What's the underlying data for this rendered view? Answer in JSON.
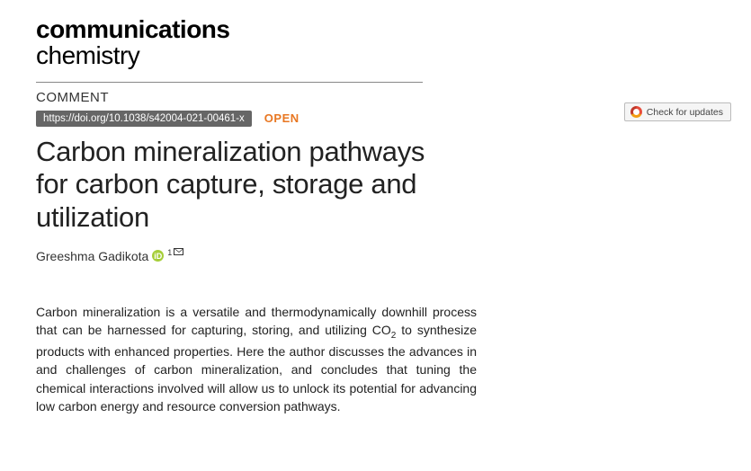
{
  "journal": {
    "line1": "communications",
    "line2": "chemistry",
    "line1_weight": 800,
    "line2_weight": 300,
    "fontsize": 28,
    "color": "#000000"
  },
  "article_type": "COMMENT",
  "doi": "https://doi.org/10.1038/s42004-021-00461-x",
  "doi_badge": {
    "bg": "#666666",
    "fg": "#ffffff"
  },
  "open_access": {
    "label": "OPEN",
    "color": "#e87722"
  },
  "title": "Carbon mineralization pathways for carbon capture, storage and utilization",
  "title_style": {
    "fontsize": 31,
    "weight": 300,
    "color": "#222222"
  },
  "author": {
    "name": "Greeshma Gadikota",
    "orcid_present": true,
    "affiliation_marker": "1",
    "corresponding": true
  },
  "orcid_color": "#a6ce39",
  "abstract_parts": {
    "p1": "Carbon mineralization is a versatile and thermodynamically downhill process that can be harnessed for capturing, storing, and utilizing CO",
    "sub": "2",
    "p2": " to synthesize products with enhanced properties. Here the author discusses the advances in and challenges of carbon mineralization, and concludes that tuning the chemical interactions involved will allow us to unlock its potential for advancing low carbon energy and resource conversion pathways."
  },
  "abstract_style": {
    "fontsize": 14,
    "color": "#222222",
    "max_width": 490
  },
  "check_updates": {
    "label": "Check for updates",
    "border": "#bbbbbb",
    "bg": "#f5f5f5",
    "fg": "#444444"
  },
  "divider_color": "#888888",
  "page_bg": "#ffffff"
}
